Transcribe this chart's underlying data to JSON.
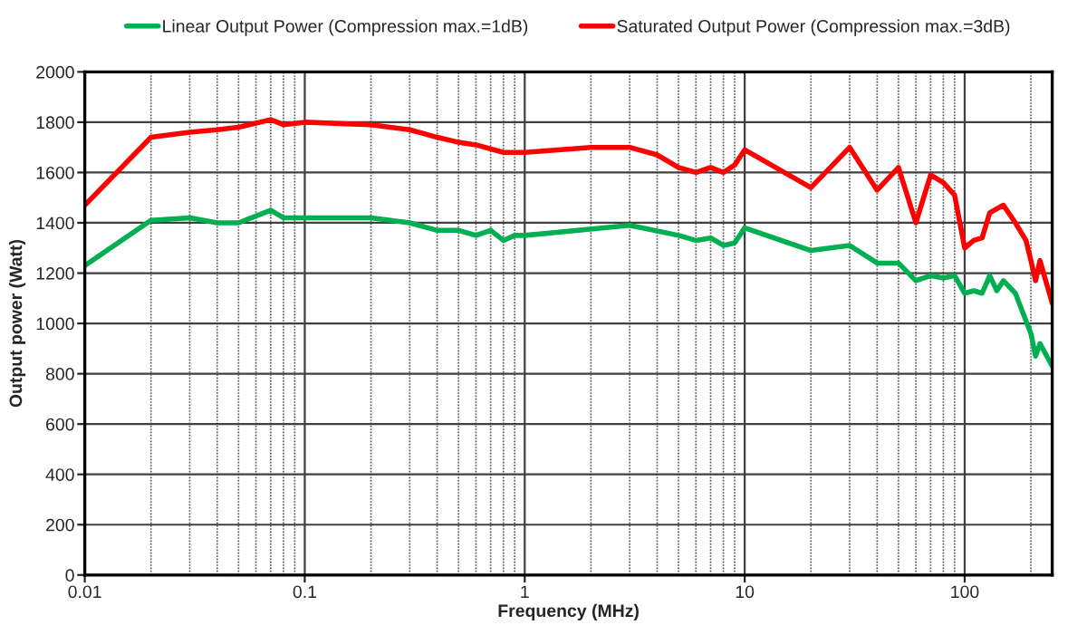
{
  "chart_data": {
    "type": "line",
    "xlabel": "Frequency (MHz)",
    "ylabel": "Output power (Watt)",
    "log": "x",
    "grid": true,
    "legend": "top",
    "marker": "none",
    "line_style": "solid",
    "xlim": [
      0.01,
      250
    ],
    "xticks": [
      0.01,
      0.1,
      1,
      10,
      100
    ],
    "ylim": [
      0,
      2000
    ],
    "yticks": [
      0,
      200,
      400,
      600,
      800,
      1000,
      1200,
      1400,
      1600,
      1800,
      2000
    ],
    "series": [
      {
        "name": "Linear Output Power (Compression max.=1dB)",
        "color": "#00b050",
        "x": [
          0.01,
          0.02,
          0.03,
          0.04,
          0.05,
          0.07,
          0.08,
          0.1,
          0.2,
          0.3,
          0.4,
          0.5,
          0.6,
          0.7,
          0.8,
          0.9,
          1,
          3,
          5,
          6,
          7,
          8,
          9,
          10,
          20,
          30,
          40,
          50,
          60,
          70,
          80,
          90,
          100,
          110,
          120,
          130,
          140,
          150,
          170,
          190,
          200,
          210,
          220,
          250
        ],
        "values": [
          1230,
          1410,
          1420,
          1400,
          1400,
          1450,
          1420,
          1420,
          1420,
          1400,
          1370,
          1370,
          1350,
          1370,
          1330,
          1350,
          1350,
          1390,
          1350,
          1330,
          1340,
          1310,
          1320,
          1380,
          1290,
          1310,
          1240,
          1240,
          1170,
          1190,
          1180,
          1190,
          1120,
          1130,
          1120,
          1190,
          1130,
          1170,
          1120,
          1010,
          960,
          870,
          920,
          830
        ]
      },
      {
        "name": "Saturated Output Power (Compression max.=3dB)",
        "color": "#ff0000",
        "x": [
          0.01,
          0.02,
          0.03,
          0.04,
          0.05,
          0.07,
          0.08,
          0.1,
          0.2,
          0.3,
          0.4,
          0.5,
          0.6,
          0.8,
          0.9,
          1,
          2,
          3,
          4,
          5,
          6,
          7,
          8,
          9,
          10,
          20,
          30,
          40,
          50,
          60,
          70,
          80,
          90,
          100,
          110,
          120,
          130,
          150,
          170,
          190,
          200,
          210,
          220,
          250
        ],
        "values": [
          1470,
          1740,
          1760,
          1770,
          1780,
          1810,
          1790,
          1800,
          1790,
          1770,
          1740,
          1720,
          1710,
          1680,
          1680,
          1680,
          1700,
          1700,
          1670,
          1620,
          1600,
          1620,
          1600,
          1630,
          1690,
          1540,
          1700,
          1530,
          1620,
          1400,
          1590,
          1560,
          1510,
          1300,
          1330,
          1340,
          1440,
          1470,
          1400,
          1330,
          1250,
          1170,
          1250,
          1080
        ]
      }
    ]
  }
}
